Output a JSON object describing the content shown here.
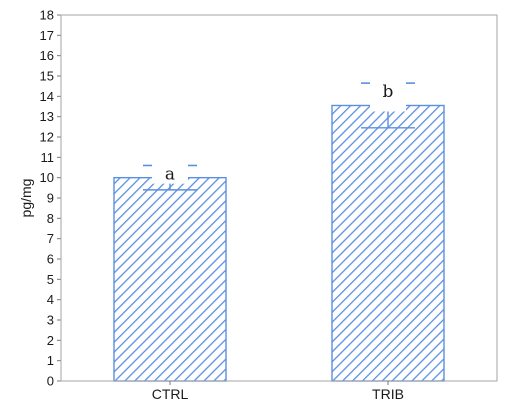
{
  "chart_data": {
    "type": "bar",
    "categories": [
      "CTRL",
      "TRIB"
    ],
    "values": [
      10.0,
      13.55
    ],
    "error_low": [
      9.4,
      12.45
    ],
    "error_high": [
      10.6,
      14.65
    ],
    "significance_labels": [
      "a",
      "b"
    ],
    "ylabel": "pg/mg",
    "xlabel": "",
    "ylim": [
      0,
      18
    ],
    "yticks": [
      0,
      1,
      2,
      3,
      4,
      5,
      6,
      7,
      8,
      9,
      10,
      11,
      12,
      13,
      14,
      15,
      16,
      17,
      18
    ],
    "bar_fill_pattern": "diagonal-hatch",
    "bar_color": "#5b8fe0",
    "grid": false,
    "legend": "none"
  }
}
